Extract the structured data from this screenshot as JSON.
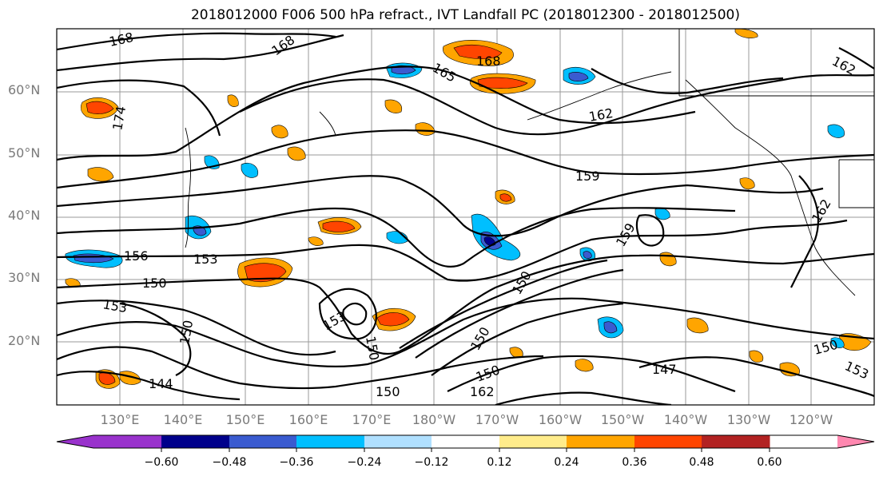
{
  "title": "2018012000 F006 500 hPa refract., IVT Landfall PC (2018012300 - 2018012500)",
  "lat_labels": [
    "60°N",
    "50°N",
    "40°N",
    "30°N",
    "20°N"
  ],
  "lon_labels": [
    "130°E",
    "140°E",
    "150°E",
    "160°E",
    "170°E",
    "180°W",
    "170°W",
    "160°W",
    "150°W",
    "140°W",
    "130°W",
    "120°W"
  ],
  "contour_labels": [
    "168",
    "168",
    "168",
    "165",
    "162",
    "162",
    "159",
    "159",
    "162",
    "174",
    "156",
    "153",
    "150",
    "153",
    "150",
    "153",
    "150",
    "147",
    "150",
    "150",
    "144",
    "150",
    "153",
    "150",
    "162",
    "150"
  ],
  "colorbar": {
    "ticks": [
      "−0.60",
      "−0.48",
      "−0.36",
      "−0.24",
      "−0.12",
      "0.12",
      "0.24",
      "0.36",
      "0.48",
      "0.60"
    ],
    "colors": [
      "#9932cc",
      "#00008b",
      "#3a5bd0",
      "#00bfff",
      "#b0e0ff",
      "#ffffff",
      "#ffec8b",
      "#ffa500",
      "#ff4500",
      "#b22222",
      "#ff88b0"
    ]
  }
}
